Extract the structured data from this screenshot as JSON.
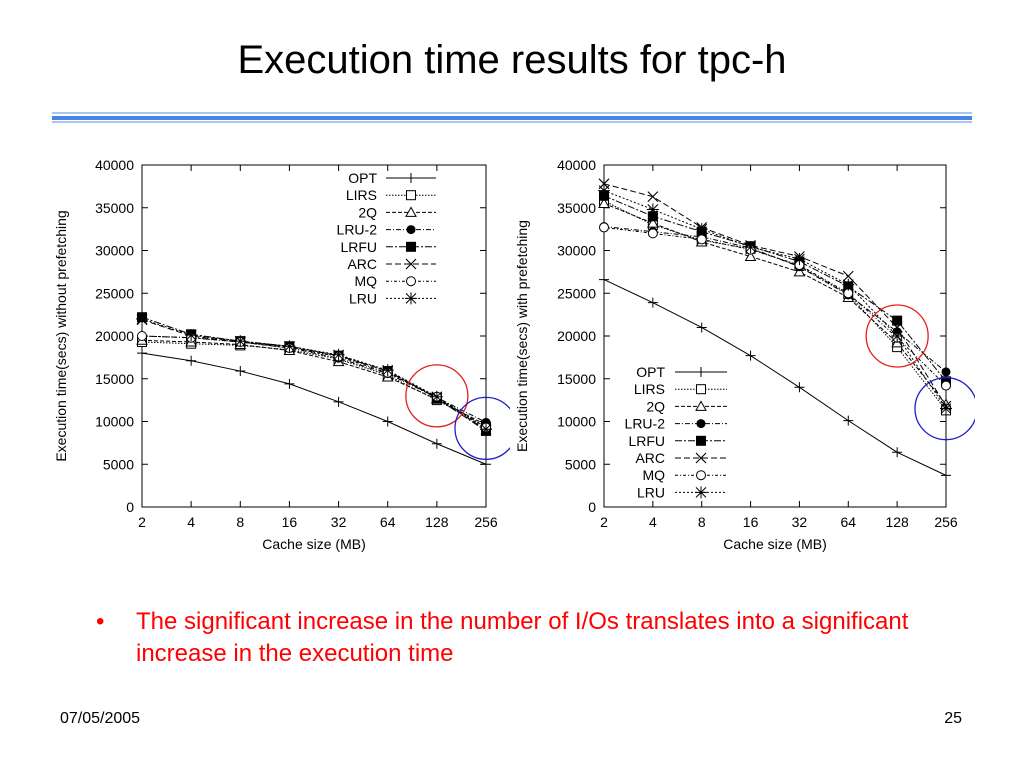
{
  "slide": {
    "title": "Execution time results for tpc-h",
    "rule_colors": [
      "#a9c4f2",
      "#4a83e6",
      "#a9c4f2"
    ],
    "bullet_color": "#ff0000",
    "bullet": "•",
    "bullet_text": "The significant increase in the number of I/Os translates into a significant increase in the execution time",
    "footer_date": "07/05/2005",
    "footer_page": "25"
  },
  "chart_data": [
    {
      "type": "line",
      "title": "",
      "xlabel": "Cache size (MB)",
      "ylabel": "Execution time(secs) without prefetching",
      "categories": [
        "2",
        "4",
        "8",
        "16",
        "32",
        "64",
        "128",
        "256"
      ],
      "ylim": [
        0,
        40000
      ],
      "yticks": [
        0,
        5000,
        10000,
        15000,
        20000,
        25000,
        30000,
        35000,
        40000
      ],
      "legend_position": "top-right",
      "grid": false,
      "highlight_circles": [
        {
          "color": "#e21f1f",
          "category": "128",
          "y": 13000
        },
        {
          "color": "#1f1fc4",
          "category": "256",
          "y": 9200
        }
      ],
      "series": [
        {
          "name": "OPT",
          "marker": "plus",
          "values": [
            18000,
            17100,
            15900,
            14400,
            12300,
            10000,
            7400,
            5000
          ]
        },
        {
          "name": "LIRS",
          "marker": "square-open",
          "values": [
            19300,
            19100,
            18900,
            18400,
            17300,
            15400,
            12500,
            9400
          ]
        },
        {
          "name": "2Q",
          "marker": "triangle-open",
          "values": [
            19500,
            19300,
            19000,
            18300,
            17000,
            15200,
            12600,
            9600
          ]
        },
        {
          "name": "LRU-2",
          "marker": "circle-filled",
          "values": [
            20000,
            19800,
            19300,
            18600,
            17400,
            15600,
            12800,
            9900
          ]
        },
        {
          "name": "LRFU",
          "marker": "square-filled",
          "values": [
            22200,
            20200,
            19400,
            18800,
            17700,
            15900,
            12700,
            8900
          ]
        },
        {
          "name": "ARC",
          "marker": "x",
          "values": [
            21900,
            20000,
            19300,
            18700,
            17700,
            15900,
            12800,
            9000
          ]
        },
        {
          "name": "MQ",
          "marker": "circle-open",
          "values": [
            20000,
            19800,
            19300,
            18600,
            17600,
            15700,
            12900,
            9300
          ]
        },
        {
          "name": "LRU",
          "marker": "star",
          "values": [
            22000,
            20100,
            19400,
            18800,
            17800,
            16000,
            12900,
            9100
          ]
        }
      ]
    },
    {
      "type": "line",
      "title": "",
      "xlabel": "Cache size (MB)",
      "ylabel": "Execution time(secs) with prefetching",
      "categories": [
        "2",
        "4",
        "8",
        "16",
        "32",
        "64",
        "128",
        "256"
      ],
      "ylim": [
        0,
        40000
      ],
      "yticks": [
        0,
        5000,
        10000,
        15000,
        20000,
        25000,
        30000,
        35000,
        40000
      ],
      "legend_position": "bottom-left",
      "grid": false,
      "highlight_circles": [
        {
          "color": "#e21f1f",
          "category": "128",
          "y": 20000
        },
        {
          "color": "#1f1fc4",
          "category": "256",
          "y": 11500
        }
      ],
      "series": [
        {
          "name": "OPT",
          "marker": "plus",
          "values": [
            26600,
            23900,
            21000,
            17700,
            14000,
            10100,
            6400,
            3700
          ]
        },
        {
          "name": "LIRS",
          "marker": "square-open",
          "values": [
            35800,
            33000,
            31200,
            30200,
            28200,
            24900,
            18700,
            11300
          ]
        },
        {
          "name": "2Q",
          "marker": "triangle-open",
          "values": [
            35500,
            33200,
            31000,
            29300,
            27500,
            24500,
            19200,
            12000
          ]
        },
        {
          "name": "LRU-2",
          "marker": "circle-filled",
          "values": [
            32800,
            32200,
            31600,
            30300,
            28100,
            24800,
            20500,
            15800
          ]
        },
        {
          "name": "LRFU",
          "marker": "square-filled",
          "values": [
            36400,
            34000,
            32200,
            30500,
            28700,
            25800,
            21800,
            14700
          ]
        },
        {
          "name": "ARC",
          "marker": "x",
          "values": [
            37800,
            36300,
            32700,
            30600,
            29300,
            27000,
            21000,
            11800
          ]
        },
        {
          "name": "MQ",
          "marker": "circle-open",
          "values": [
            32700,
            32000,
            31300,
            30100,
            28300,
            25000,
            19800,
            14200
          ]
        },
        {
          "name": "LRU",
          "marker": "star",
          "values": [
            37000,
            34800,
            32500,
            30400,
            29000,
            26000,
            20000,
            11500
          ]
        }
      ]
    }
  ]
}
